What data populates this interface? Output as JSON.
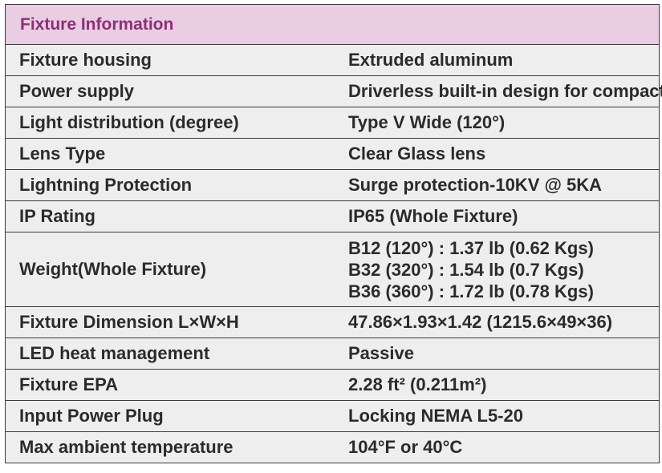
{
  "table": {
    "header": "Fixture Information",
    "rows": [
      {
        "label": "Fixture housing",
        "value": "Extruded aluminum"
      },
      {
        "label": "Power supply",
        "value": "Driverless built-in design for compact"
      },
      {
        "label": "Light distribution (degree)",
        "value": "Type V Wide (120°)"
      },
      {
        "label": "Lens Type",
        "value": "Clear Glass lens"
      },
      {
        "label": "Lightning Protection",
        "value": "Surge protection-10KV @ 5KA"
      },
      {
        "label": "IP Rating",
        "value": "IP65 (Whole Fixture)"
      },
      {
        "label": "Weight(Whole Fixture)",
        "values": [
          "B12 (120°) : 1.37 lb (0.62 Kgs)",
          "B32 (320°) : 1.54 lb (0.7 Kgs)",
          "B36 (360°) : 1.72 lb (0.78 Kgs)"
        ]
      },
      {
        "label": "Fixture Dimension L×W×H",
        "value": "47.86×1.93×1.42 (1215.6×49×36)"
      },
      {
        "label": "LED heat management",
        "value": "Passive"
      },
      {
        "label": "Fixture EPA",
        "value": "2.28 ft² (0.211m²)"
      },
      {
        "label": "Input Power Plug",
        "value": "Locking NEMA L5-20"
      },
      {
        "label": "Max ambient temperature",
        "value": "104°F or 40°C"
      }
    ]
  },
  "colors": {
    "header_bg": "#e8cde3",
    "header_text": "#8e2f74",
    "row_bg": "#eeeeee",
    "text": "#2b2b2b",
    "border": "#3a3a3a"
  }
}
